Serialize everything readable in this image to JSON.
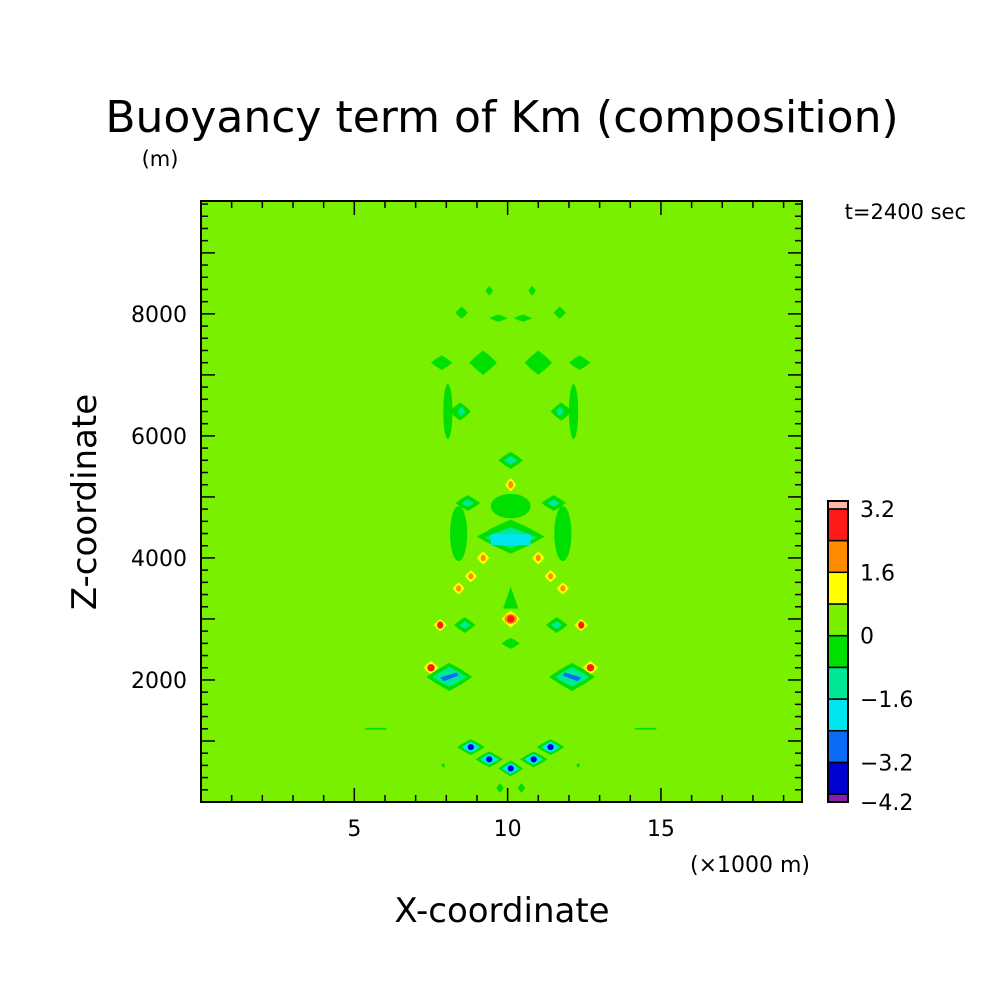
{
  "chart_data": {
    "type": "heatmap",
    "title": "Buoyancy term of Km (composition)",
    "y_unit": "(m)",
    "x_unit": "(×1000 m)",
    "xlabel": "X-coordinate",
    "ylabel": "Z-coordinate",
    "time_label": "t=2400 sec",
    "xlim": [
      0,
      19.6
    ],
    "ylim": [
      0,
      9850
    ],
    "x_ticks": [
      5,
      10,
      15
    ],
    "y_ticks": [
      2000,
      4000,
      6000,
      8000
    ],
    "background_level": "0 to 0.8",
    "colorbar": {
      "levels": [
        -4.2,
        -4.0,
        -3.2,
        -2.4,
        -1.6,
        -0.8,
        0,
        0.8,
        1.6,
        2.4,
        3.2,
        3.4
      ],
      "colors": [
        "#8a1cb0",
        "#0000d0",
        "#0a6cf5",
        "#00e6f0",
        "#00e896",
        "#00e000",
        "#78f000",
        "#ffff00",
        "#ff8c00",
        "#ff1a1a",
        "#ffb8a8"
      ],
      "tick_labels": [
        "3.2",
        "1.6",
        "0",
        "−1.6",
        "−3.2",
        "−4.2"
      ],
      "tick_values": [
        3.2,
        1.6,
        0,
        -1.6,
        -3.2,
        -4.2
      ]
    },
    "features": [
      {
        "x": 9.4,
        "z": 8380,
        "rx": 0.12,
        "rz": 80,
        "level": "0 to -0.8",
        "shape": "diamond"
      },
      {
        "x": 10.8,
        "z": 8380,
        "rx": 0.12,
        "rz": 80,
        "level": "0 to -0.8",
        "shape": "diamond"
      },
      {
        "x": 8.5,
        "z": 8020,
        "rx": 0.2,
        "rz": 100,
        "level": "0 to -0.8",
        "shape": "diamond"
      },
      {
        "x": 11.7,
        "z": 8020,
        "rx": 0.2,
        "rz": 100,
        "level": "0 to -0.8",
        "shape": "diamond"
      },
      {
        "x": 9.7,
        "z": 7930,
        "rx": 0.3,
        "rz": 60,
        "level": "0 to -0.8",
        "shape": "diamond"
      },
      {
        "x": 10.5,
        "z": 7930,
        "rx": 0.3,
        "rz": 60,
        "level": "0 to -0.8",
        "shape": "diamond"
      },
      {
        "x": 7.85,
        "z": 7200,
        "rx": 0.35,
        "rz": 120,
        "level": "0 to -0.8",
        "shape": "diamond"
      },
      {
        "x": 12.35,
        "z": 7200,
        "rx": 0.35,
        "rz": 120,
        "level": "0 to -0.8",
        "shape": "diamond"
      },
      {
        "x": 9.2,
        "z": 7200,
        "rx": 0.45,
        "rz": 200,
        "level": "0 to -0.8",
        "shape": "diamond"
      },
      {
        "x": 11.0,
        "z": 7200,
        "rx": 0.45,
        "rz": 200,
        "level": "0 to -0.8",
        "shape": "diamond"
      },
      {
        "x": 8.05,
        "z": 6400,
        "rx": 0.15,
        "rz": 450,
        "level": "0 to -0.8",
        "shape": "ellipse"
      },
      {
        "x": 12.15,
        "z": 6400,
        "rx": 0.15,
        "rz": 450,
        "level": "0 to -0.8",
        "shape": "ellipse"
      },
      {
        "x": 8.45,
        "z": 6400,
        "rx": 0.35,
        "rz": 150,
        "level": "0 to -0.8",
        "shape": "diamond"
      },
      {
        "x": 11.75,
        "z": 6400,
        "rx": 0.35,
        "rz": 150,
        "level": "0 to -0.8",
        "shape": "diamond"
      },
      {
        "x": 8.5,
        "z": 6400,
        "rx": 0.12,
        "rz": 80,
        "level": "-0.8 to -1.6",
        "shape": "diamond"
      },
      {
        "x": 11.7,
        "z": 6400,
        "rx": 0.12,
        "rz": 80,
        "level": "-0.8 to -1.6",
        "shape": "diamond"
      },
      {
        "x": 10.1,
        "z": 5600,
        "rx": 0.4,
        "rz": 140,
        "level": "0 to -0.8",
        "shape": "diamond"
      },
      {
        "x": 10.1,
        "z": 5600,
        "rx": 0.22,
        "rz": 70,
        "level": "-0.8 to -1.6",
        "shape": "diamond"
      },
      {
        "x": 10.1,
        "z": 5200,
        "rx": 0.18,
        "rz": 110,
        "level": "0.8 to 1.6",
        "shape": "diamond"
      },
      {
        "x": 10.1,
        "z": 5200,
        "rx": 0.08,
        "rz": 60,
        "level": "1.6 to 2.4",
        "shape": "ellipse"
      },
      {
        "x": 10.1,
        "z": 4850,
        "rx": 0.65,
        "rz": 200,
        "level": "0 to -0.8",
        "shape": "ellipse"
      },
      {
        "x": 8.7,
        "z": 4900,
        "rx": 0.4,
        "rz": 130,
        "level": "0 to -0.8",
        "shape": "diamond"
      },
      {
        "x": 8.7,
        "z": 4900,
        "rx": 0.2,
        "rz": 60,
        "level": "-0.8 to -1.6",
        "shape": "diamond"
      },
      {
        "x": 11.5,
        "z": 4900,
        "rx": 0.4,
        "rz": 130,
        "level": "0 to -0.8",
        "shape": "diamond"
      },
      {
        "x": 11.5,
        "z": 4900,
        "rx": 0.2,
        "rz": 60,
        "level": "-0.8 to -1.6",
        "shape": "diamond"
      },
      {
        "x": 8.4,
        "z": 4400,
        "rx": 0.28,
        "rz": 450,
        "level": "0 to -0.8",
        "shape": "ellipse"
      },
      {
        "x": 11.8,
        "z": 4400,
        "rx": 0.28,
        "rz": 450,
        "level": "0 to -0.8",
        "shape": "ellipse"
      },
      {
        "x": 10.1,
        "z": 4350,
        "rx": 1.1,
        "rz": 280,
        "level": "0 to -0.8",
        "shape": "diamond"
      },
      {
        "x": 10.1,
        "z": 4330,
        "rx": 0.85,
        "rz": 170,
        "level": "-0.8 to -1.6",
        "shape": "diamond"
      },
      {
        "x": 10.1,
        "z": 4300,
        "rx": 0.65,
        "rz": 90,
        "level": "-1.6 to -2.4",
        "shape": "rect"
      },
      {
        "x": 9.2,
        "z": 4000,
        "rx": 0.2,
        "rz": 110,
        "level": "0.8 to 1.6",
        "shape": "diamond"
      },
      {
        "x": 9.2,
        "z": 4000,
        "rx": 0.08,
        "rz": 55,
        "level": "1.6 to 2.4",
        "shape": "ellipse"
      },
      {
        "x": 11.0,
        "z": 4000,
        "rx": 0.2,
        "rz": 110,
        "level": "0.8 to 1.6",
        "shape": "diamond"
      },
      {
        "x": 11.0,
        "z": 4000,
        "rx": 0.08,
        "rz": 55,
        "level": "1.6 to 2.4",
        "shape": "ellipse"
      },
      {
        "x": 8.8,
        "z": 3700,
        "rx": 0.2,
        "rz": 100,
        "level": "0.8 to 1.6",
        "shape": "diamond"
      },
      {
        "x": 8.8,
        "z": 3700,
        "rx": 0.08,
        "rz": 50,
        "level": "1.6 to 2.4",
        "shape": "ellipse"
      },
      {
        "x": 11.4,
        "z": 3700,
        "rx": 0.2,
        "rz": 100,
        "level": "0.8 to 1.6",
        "shape": "diamond"
      },
      {
        "x": 11.4,
        "z": 3700,
        "rx": 0.08,
        "rz": 50,
        "level": "1.6 to 2.4",
        "shape": "ellipse"
      },
      {
        "x": 8.4,
        "z": 3500,
        "rx": 0.2,
        "rz": 100,
        "level": "0.8 to 1.6",
        "shape": "diamond"
      },
      {
        "x": 8.4,
        "z": 3500,
        "rx": 0.08,
        "rz": 50,
        "level": "1.6 to 2.4",
        "shape": "ellipse"
      },
      {
        "x": 11.8,
        "z": 3500,
        "rx": 0.2,
        "rz": 100,
        "level": "0.8 to 1.6",
        "shape": "diamond"
      },
      {
        "x": 11.8,
        "z": 3500,
        "rx": 0.08,
        "rz": 50,
        "level": "1.6 to 2.4",
        "shape": "ellipse"
      },
      {
        "x": 10.1,
        "z": 3350,
        "rx": 0.25,
        "rz": 180,
        "level": "0 to -0.8",
        "shape": "triangle"
      },
      {
        "x": 10.1,
        "z": 3000,
        "rx": 0.3,
        "rz": 140,
        "level": "0.8 to 1.6",
        "shape": "diamond"
      },
      {
        "x": 10.1,
        "z": 3000,
        "rx": 0.2,
        "rz": 80,
        "level": "1.6 to 2.4",
        "shape": "ellipse"
      },
      {
        "x": 10.1,
        "z": 3000,
        "rx": 0.12,
        "rz": 60,
        "level": "2.4 to 3.2",
        "shape": "ellipse"
      },
      {
        "x": 7.8,
        "z": 2900,
        "rx": 0.22,
        "rz": 100,
        "level": "0.8 to 1.6",
        "shape": "diamond"
      },
      {
        "x": 7.8,
        "z": 2900,
        "rx": 0.1,
        "rz": 60,
        "level": "2.4 to 3.2",
        "shape": "ellipse"
      },
      {
        "x": 12.4,
        "z": 2900,
        "rx": 0.22,
        "rz": 100,
        "level": "0.8 to 1.6",
        "shape": "diamond"
      },
      {
        "x": 12.4,
        "z": 2900,
        "rx": 0.1,
        "rz": 60,
        "level": "2.4 to 3.2",
        "shape": "ellipse"
      },
      {
        "x": 8.6,
        "z": 2900,
        "rx": 0.35,
        "rz": 130,
        "level": "0 to -0.8",
        "shape": "diamond"
      },
      {
        "x": 8.6,
        "z": 2900,
        "rx": 0.17,
        "rz": 65,
        "level": "-0.8 to -1.6",
        "shape": "diamond"
      },
      {
        "x": 11.6,
        "z": 2900,
        "rx": 0.35,
        "rz": 130,
        "level": "0 to -0.8",
        "shape": "diamond"
      },
      {
        "x": 11.6,
        "z": 2900,
        "rx": 0.17,
        "rz": 65,
        "level": "-0.8 to -1.6",
        "shape": "diamond"
      },
      {
        "x": 10.1,
        "z": 2600,
        "rx": 0.3,
        "rz": 90,
        "level": "0 to -0.8",
        "shape": "diamond"
      },
      {
        "x": 7.5,
        "z": 2200,
        "rx": 0.25,
        "rz": 110,
        "level": "0.8 to 1.6",
        "shape": "diamond"
      },
      {
        "x": 7.5,
        "z": 2200,
        "rx": 0.12,
        "rz": 60,
        "level": "2.4 to 3.2",
        "shape": "ellipse"
      },
      {
        "x": 12.7,
        "z": 2200,
        "rx": 0.25,
        "rz": 110,
        "level": "0.8 to 1.6",
        "shape": "diamond"
      },
      {
        "x": 12.7,
        "z": 2200,
        "rx": 0.12,
        "rz": 60,
        "level": "2.4 to 3.2",
        "shape": "ellipse"
      },
      {
        "x": 8.1,
        "z": 2050,
        "rx": 0.75,
        "rz": 230,
        "level": "0 to -0.8",
        "shape": "diamond"
      },
      {
        "x": 8.1,
        "z": 2050,
        "rx": 0.55,
        "rz": 160,
        "level": "-0.8 to -1.6",
        "shape": "diamond"
      },
      {
        "x": 8.1,
        "z": 2050,
        "rx": 0.3,
        "rz": 60,
        "level": "-2.4 to -3.2",
        "shape": "slant-left"
      },
      {
        "x": 12.1,
        "z": 2050,
        "rx": 0.75,
        "rz": 230,
        "level": "0 to -0.8",
        "shape": "diamond"
      },
      {
        "x": 12.1,
        "z": 2050,
        "rx": 0.55,
        "rz": 160,
        "level": "-0.8 to -1.6",
        "shape": "diamond"
      },
      {
        "x": 12.1,
        "z": 2050,
        "rx": 0.3,
        "rz": 60,
        "level": "-2.4 to -3.2",
        "shape": "slant-right"
      },
      {
        "x": 5.7,
        "z": 1200,
        "rx": 0.35,
        "rz": 15,
        "level": "0 to -0.8",
        "shape": "rect"
      },
      {
        "x": 14.5,
        "z": 1200,
        "rx": 0.35,
        "rz": 15,
        "level": "0 to -0.8",
        "shape": "rect"
      },
      {
        "x": 8.8,
        "z": 900,
        "rx": 0.45,
        "rz": 130,
        "level": "0 to -0.8",
        "shape": "diamond"
      },
      {
        "x": 8.8,
        "z": 900,
        "rx": 0.3,
        "rz": 90,
        "level": "-1.6 to -2.4",
        "shape": "diamond"
      },
      {
        "x": 8.8,
        "z": 900,
        "rx": 0.1,
        "rz": 50,
        "level": "-3.2 to -4.0",
        "shape": "ellipse"
      },
      {
        "x": 11.4,
        "z": 900,
        "rx": 0.45,
        "rz": 130,
        "level": "0 to -0.8",
        "shape": "diamond"
      },
      {
        "x": 11.4,
        "z": 900,
        "rx": 0.3,
        "rz": 90,
        "level": "-1.6 to -2.4",
        "shape": "diamond"
      },
      {
        "x": 11.4,
        "z": 900,
        "rx": 0.1,
        "rz": 50,
        "level": "-3.2 to -4.0",
        "shape": "ellipse"
      },
      {
        "x": 9.4,
        "z": 700,
        "rx": 0.45,
        "rz": 130,
        "level": "0 to -0.8",
        "shape": "diamond"
      },
      {
        "x": 9.4,
        "z": 700,
        "rx": 0.3,
        "rz": 90,
        "level": "-1.6 to -2.4",
        "shape": "diamond"
      },
      {
        "x": 9.4,
        "z": 700,
        "rx": 0.1,
        "rz": 50,
        "level": "-3.2 to -4.0",
        "shape": "ellipse"
      },
      {
        "x": 10.85,
        "z": 700,
        "rx": 0.45,
        "rz": 130,
        "level": "0 to -0.8",
        "shape": "diamond"
      },
      {
        "x": 10.85,
        "z": 700,
        "rx": 0.3,
        "rz": 90,
        "level": "-1.6 to -2.4",
        "shape": "diamond"
      },
      {
        "x": 10.85,
        "z": 700,
        "rx": 0.1,
        "rz": 50,
        "level": "-3.2 to -4.0",
        "shape": "ellipse"
      },
      {
        "x": 10.1,
        "z": 550,
        "rx": 0.4,
        "rz": 130,
        "level": "0 to -0.8",
        "shape": "diamond"
      },
      {
        "x": 10.1,
        "z": 550,
        "rx": 0.28,
        "rz": 90,
        "level": "-1.6 to -2.4",
        "shape": "diamond"
      },
      {
        "x": 10.1,
        "z": 550,
        "rx": 0.1,
        "rz": 50,
        "level": "-3.2 to -4.0",
        "shape": "ellipse"
      },
      {
        "x": 7.9,
        "z": 600,
        "rx": 0.06,
        "rz": 40,
        "level": "0 to -0.8",
        "shape": "diamond"
      },
      {
        "x": 12.3,
        "z": 600,
        "rx": 0.06,
        "rz": 40,
        "level": "0 to -0.8",
        "shape": "diamond"
      },
      {
        "x": 9.75,
        "z": 230,
        "rx": 0.12,
        "rz": 80,
        "level": "0 to -0.8",
        "shape": "diamond"
      },
      {
        "x": 10.45,
        "z": 230,
        "rx": 0.12,
        "rz": 80,
        "level": "0 to -0.8",
        "shape": "diamond"
      }
    ]
  }
}
